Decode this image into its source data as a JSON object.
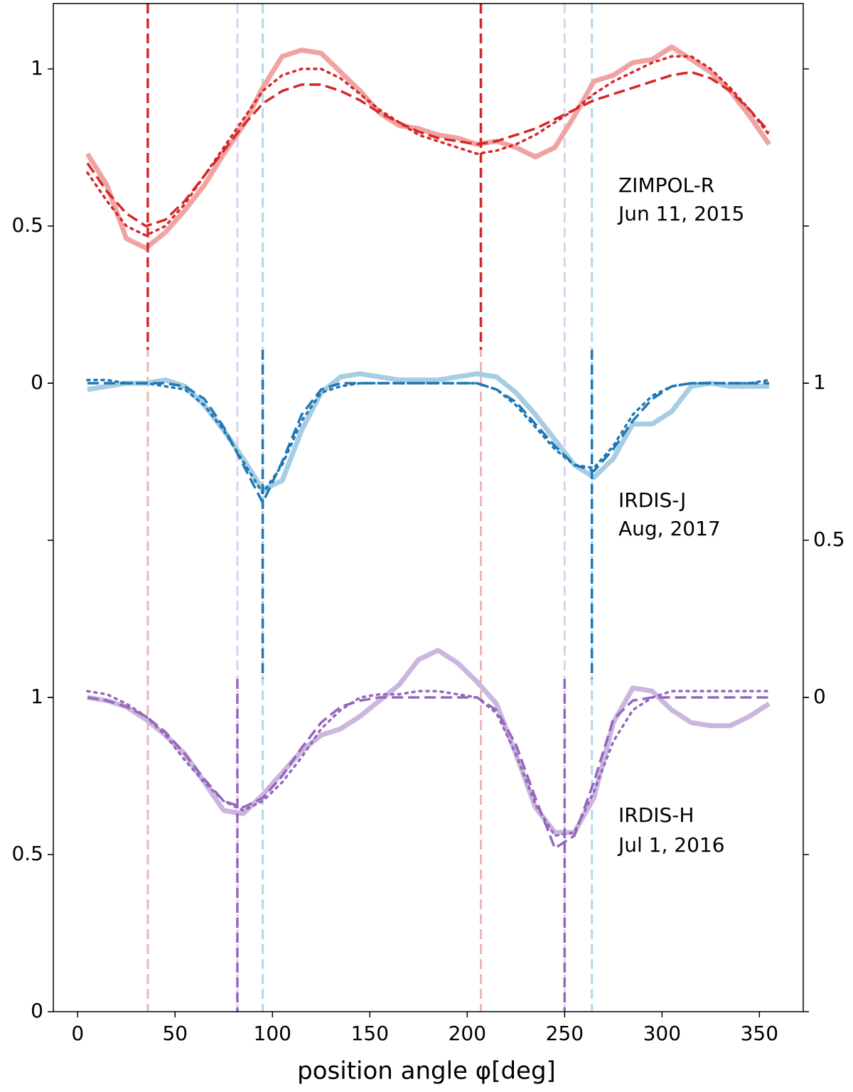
{
  "chart_data": [
    {
      "type": "line",
      "axis": "left",
      "label": [
        "ZIMPOL-R",
        "Jun 11, 2015"
      ],
      "ylim": [
        -2,
        1.208
      ],
      "yticks": [
        0,
        0.5,
        1
      ],
      "vlines": [
        36,
        207
      ],
      "vline_color": "#d62728",
      "vline_light_color": "#f4b3b3",
      "x": [
        5,
        15,
        25,
        35,
        45,
        55,
        65,
        75,
        85,
        95,
        105,
        115,
        125,
        135,
        145,
        155,
        165,
        175,
        185,
        195,
        205,
        215,
        225,
        235,
        245,
        255,
        265,
        275,
        285,
        295,
        305,
        315,
        325,
        335,
        345,
        355
      ],
      "series": [
        {
          "color": "#f0a3a3",
          "style": "solid",
          "values": [
            0.73,
            0.63,
            0.46,
            0.43,
            0.48,
            0.55,
            0.63,
            0.73,
            0.82,
            0.94,
            1.04,
            1.06,
            1.05,
            0.99,
            0.93,
            0.86,
            0.82,
            0.81,
            0.79,
            0.78,
            0.76,
            0.77,
            0.75,
            0.72,
            0.75,
            0.85,
            0.96,
            0.98,
            1.02,
            1.03,
            1.07,
            1.03,
            0.99,
            0.93,
            0.85,
            0.76
          ]
        },
        {
          "color": "#d62728",
          "style": "dashed",
          "values": [
            0.7,
            0.61,
            0.54,
            0.5,
            0.52,
            0.58,
            0.66,
            0.74,
            0.82,
            0.89,
            0.93,
            0.95,
            0.95,
            0.93,
            0.9,
            0.86,
            0.83,
            0.8,
            0.78,
            0.77,
            0.76,
            0.77,
            0.79,
            0.81,
            0.84,
            0.87,
            0.9,
            0.92,
            0.94,
            0.96,
            0.98,
            0.99,
            0.97,
            0.93,
            0.87,
            0.8
          ]
        },
        {
          "color": "#d62728",
          "style": "dotted",
          "values": [
            0.67,
            0.58,
            0.5,
            0.47,
            0.5,
            0.57,
            0.66,
            0.75,
            0.84,
            0.93,
            0.98,
            1.0,
            1.0,
            0.97,
            0.92,
            0.87,
            0.83,
            0.79,
            0.77,
            0.75,
            0.73,
            0.74,
            0.76,
            0.79,
            0.83,
            0.87,
            0.92,
            0.96,
            0.99,
            1.02,
            1.04,
            1.04,
            1.0,
            0.94,
            0.87,
            0.79
          ]
        }
      ]
    },
    {
      "type": "line",
      "axis": "right",
      "label": [
        "IRDIS-J",
        "Aug, 2017"
      ],
      "ylim": [
        -1,
        2.208
      ],
      "yticks": [
        0,
        0.5,
        1
      ],
      "vlines": [
        95,
        264
      ],
      "vline_color": "#1f77b4",
      "vline_light_color": "#b3d7ea",
      "x": [
        5,
        15,
        25,
        35,
        45,
        55,
        65,
        75,
        85,
        95,
        105,
        115,
        125,
        135,
        145,
        155,
        165,
        175,
        185,
        195,
        205,
        215,
        225,
        235,
        245,
        255,
        265,
        275,
        285,
        295,
        305,
        315,
        325,
        335,
        345,
        355
      ],
      "series": [
        {
          "color": "#a6cde3",
          "style": "solid",
          "values": [
            0.98,
            0.99,
            1.0,
            1.0,
            1.01,
            0.99,
            0.93,
            0.85,
            0.76,
            0.66,
            0.69,
            0.85,
            0.97,
            1.02,
            1.03,
            1.02,
            1.01,
            1.01,
            1.01,
            1.02,
            1.03,
            1.02,
            0.97,
            0.9,
            0.82,
            0.74,
            0.7,
            0.76,
            0.87,
            0.87,
            0.91,
            0.99,
            1.0,
            0.99,
            0.99,
            0.99
          ]
        },
        {
          "color": "#1f77b4",
          "style": "dashed",
          "values": [
            1.0,
            1.0,
            1.0,
            1.0,
            1.0,
            0.99,
            0.95,
            0.86,
            0.74,
            0.62,
            0.75,
            0.9,
            0.98,
            1.0,
            1.0,
            1.0,
            1.0,
            1.0,
            1.0,
            1.0,
            1.0,
            0.98,
            0.94,
            0.87,
            0.8,
            0.74,
            0.72,
            0.79,
            0.88,
            0.95,
            0.99,
            1.0,
            1.0,
            1.0,
            1.0,
            1.0
          ]
        },
        {
          "color": "#1f77b4",
          "style": "dotted",
          "values": [
            1.01,
            1.01,
            1.0,
            1.0,
            0.99,
            0.98,
            0.93,
            0.85,
            0.75,
            0.65,
            0.74,
            0.88,
            0.97,
            0.99,
            1.0,
            1.0,
            1.0,
            1.0,
            1.0,
            1.0,
            1.0,
            0.98,
            0.93,
            0.86,
            0.79,
            0.74,
            0.73,
            0.8,
            0.9,
            0.96,
            0.99,
            1.0,
            1.0,
            1.0,
            1.0,
            1.01
          ]
        }
      ]
    },
    {
      "type": "line",
      "axis": "left",
      "label": [
        "IRDIS-H",
        "Jul 1, 2016"
      ],
      "ylim": [
        0,
        3.208
      ],
      "yticks": [
        0,
        0.5,
        1
      ],
      "vlines": [
        82,
        250
      ],
      "vline_color": "#9467bd",
      "vline_light_color": "#ded0f0",
      "xlim": [
        -12.5,
        372.5
      ],
      "xticks": [
        0,
        50,
        100,
        150,
        200,
        250,
        300,
        350
      ],
      "xlabel": "position angle φ[deg]",
      "x": [
        5,
        15,
        25,
        35,
        45,
        55,
        65,
        75,
        85,
        95,
        105,
        115,
        125,
        135,
        145,
        155,
        165,
        175,
        185,
        195,
        205,
        215,
        225,
        235,
        245,
        255,
        265,
        275,
        285,
        295,
        305,
        315,
        325,
        335,
        345,
        355
      ],
      "series": [
        {
          "color": "#cbb6e0",
          "style": "solid",
          "values": [
            1.0,
            0.99,
            0.97,
            0.93,
            0.88,
            0.82,
            0.73,
            0.64,
            0.63,
            0.69,
            0.76,
            0.83,
            0.88,
            0.9,
            0.94,
            0.99,
            1.04,
            1.12,
            1.15,
            1.11,
            1.05,
            0.98,
            0.82,
            0.65,
            0.57,
            0.57,
            0.68,
            0.92,
            1.03,
            1.02,
            0.96,
            0.92,
            0.91,
            0.91,
            0.94,
            0.98
          ]
        },
        {
          "color": "#9467bd",
          "style": "dashed",
          "values": [
            1.0,
            0.99,
            0.97,
            0.94,
            0.89,
            0.82,
            0.74,
            0.67,
            0.65,
            0.68,
            0.75,
            0.84,
            0.92,
            0.97,
            0.99,
            1.0,
            1.0,
            1.0,
            1.0,
            1.0,
            1.0,
            0.96,
            0.85,
            0.68,
            0.52,
            0.56,
            0.73,
            0.93,
            0.99,
            1.0,
            1.0,
            1.0,
            1.0,
            1.0,
            1.0,
            1.0
          ]
        },
        {
          "color": "#9467bd",
          "style": "dotted",
          "values": [
            1.02,
            1.01,
            0.98,
            0.94,
            0.88,
            0.8,
            0.73,
            0.67,
            0.64,
            0.67,
            0.73,
            0.81,
            0.9,
            0.96,
            1.0,
            1.01,
            1.01,
            1.02,
            1.02,
            1.01,
            1.0,
            0.95,
            0.82,
            0.66,
            0.56,
            0.57,
            0.7,
            0.86,
            0.96,
            1.0,
            1.02,
            1.02,
            1.02,
            1.02,
            1.02,
            1.02
          ]
        }
      ]
    }
  ]
}
